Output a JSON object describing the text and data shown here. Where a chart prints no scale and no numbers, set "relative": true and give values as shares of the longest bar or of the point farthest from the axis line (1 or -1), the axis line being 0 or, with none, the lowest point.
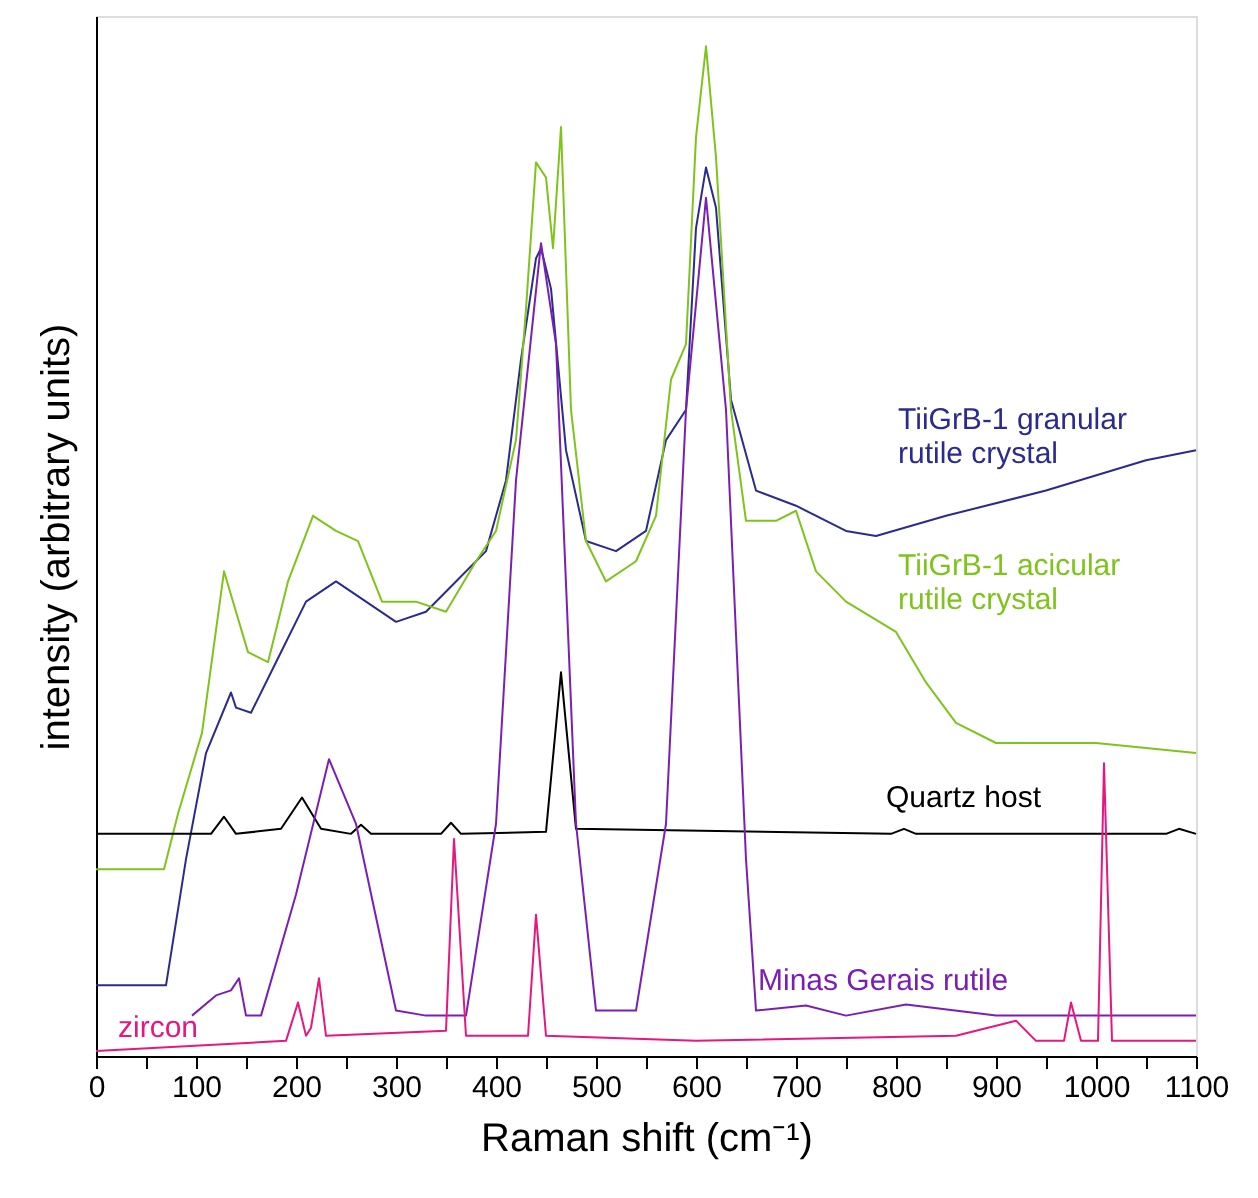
{
  "chart_data": {
    "type": "line",
    "relative": true,
    "xlabel": "Raman shift (cm⁻¹)",
    "ylabel": "intensity (arbitrary units)",
    "xlim": [
      0,
      1100
    ],
    "xticks": [
      0,
      {
        "value": 50,
        "label": null
      },
      100,
      {
        "value": 150,
        "label": null
      },
      200,
      {
        "value": 250,
        "label": null
      },
      300,
      {
        "value": 350,
        "label": null
      },
      400,
      {
        "value": 450,
        "label": null
      },
      500,
      {
        "value": 550,
        "label": null
      },
      600,
      {
        "value": 650,
        "label": null
      },
      700,
      {
        "value": 750,
        "label": null
      },
      800,
      {
        "value": 850,
        "label": null
      },
      900,
      {
        "value": 950,
        "label": null
      },
      1000,
      {
        "value": 1050,
        "label": null
      },
      1100
    ],
    "grid": false,
    "legend": false,
    "marker": "none",
    "line_style": "solid",
    "series": [
      {
        "name": "TiiGrB-1 granular\nrutile crystal",
        "color": "#2b2b8f",
        "x": [
          0,
          70,
          90,
          110,
          135,
          140,
          155,
          180,
          210,
          240,
          270,
          300,
          330,
          360,
          390,
          410,
          425,
          440,
          445,
          455,
          470,
          490,
          520,
          550,
          570,
          590,
          600,
          610,
          620,
          635,
          660,
          700,
          750,
          780,
          850,
          950,
          1050,
          1100
        ],
        "values": [
          0.07,
          0.07,
          0.195,
          0.3,
          0.36,
          0.345,
          0.34,
          0.39,
          0.45,
          0.47,
          0.45,
          0.43,
          0.44,
          0.47,
          0.5,
          0.57,
          0.69,
          0.79,
          0.8,
          0.76,
          0.6,
          0.51,
          0.5,
          0.52,
          0.61,
          0.64,
          0.82,
          0.88,
          0.84,
          0.65,
          0.56,
          0.545,
          0.52,
          0.515,
          0.535,
          0.56,
          0.59,
          0.6
        ]
      },
      {
        "name": "TiiGrB-1 acicular\nrutile crystal",
        "color": "#7fc31c",
        "x": [
          0,
          68,
          82,
          106,
          128,
          140,
          152,
          172,
          192,
          217,
          240,
          262,
          286,
          320,
          350,
          380,
          400,
          420,
          430,
          440,
          450,
          457,
          465,
          475,
          490,
          510,
          540,
          560,
          575,
          590,
          600,
          610,
          620,
          635,
          650,
          680,
          700,
          720,
          750,
          800,
          830,
          860,
          900,
          1000,
          1100
        ],
        "values": [
          0.185,
          0.185,
          0.24,
          0.32,
          0.48,
          0.44,
          0.4,
          0.39,
          0.47,
          0.535,
          0.52,
          0.51,
          0.45,
          0.45,
          0.44,
          0.49,
          0.52,
          0.61,
          0.74,
          0.885,
          0.87,
          0.8,
          0.92,
          0.64,
          0.51,
          0.47,
          0.49,
          0.535,
          0.67,
          0.705,
          0.91,
          1.0,
          0.89,
          0.64,
          0.53,
          0.53,
          0.54,
          0.48,
          0.45,
          0.42,
          0.37,
          0.33,
          0.31,
          0.31,
          0.3
        ]
      },
      {
        "name": "Quartz host",
        "color": "#000000",
        "x": [
          0,
          115,
          128,
          140,
          185,
          206,
          225,
          255,
          265,
          275,
          345,
          355,
          365,
          450,
          465,
          480,
          795,
          808,
          820,
          1070,
          1083,
          1100
        ],
        "values": [
          0.22,
          0.22,
          0.237,
          0.22,
          0.225,
          0.256,
          0.225,
          0.22,
          0.229,
          0.22,
          0.22,
          0.231,
          0.22,
          0.222,
          0.38,
          0.225,
          0.22,
          0.225,
          0.22,
          0.22,
          0.225,
          0.22
        ]
      },
      {
        "name": "Minas Gerais rutile",
        "color": "#7b1fb3",
        "x": [
          96,
          120,
          135,
          143,
          150,
          165,
          200,
          233,
          260,
          300,
          330,
          370,
          400,
          420,
          445,
          460,
          480,
          500,
          540,
          570,
          590,
          610,
          630,
          650,
          660,
          710,
          750,
          810,
          900,
          1100
        ],
        "values": [
          0.04,
          0.06,
          0.065,
          0.077,
          0.04,
          0.04,
          0.16,
          0.294,
          0.23,
          0.045,
          0.04,
          0.04,
          0.23,
          0.57,
          0.805,
          0.705,
          0.23,
          0.045,
          0.045,
          0.23,
          0.64,
          0.85,
          0.64,
          0.195,
          0.045,
          0.05,
          0.04,
          0.051,
          0.04,
          0.04
        ]
      },
      {
        "name": "zircon",
        "color": "#e6177f",
        "x": [
          0,
          190,
          202,
          210,
          215,
          223,
          230,
          350,
          358,
          370,
          432,
          440,
          450,
          600,
          860,
          920,
          940,
          968,
          975,
          985,
          1002,
          1008,
          1016,
          1100
        ],
        "values": [
          0.005,
          0.015,
          0.053,
          0.02,
          0.028,
          0.077,
          0.02,
          0.025,
          0.215,
          0.02,
          0.02,
          0.14,
          0.02,
          0.015,
          0.02,
          0.035,
          0.015,
          0.015,
          0.053,
          0.015,
          0.015,
          0.29,
          0.015,
          0.015
        ]
      }
    ]
  }
}
